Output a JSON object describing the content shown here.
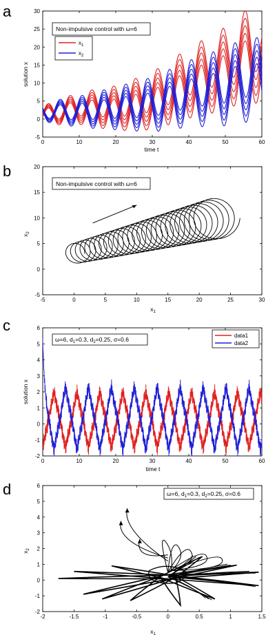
{
  "panels": [
    {
      "id": "a",
      "label": "a",
      "xlabel": "time t",
      "ylabel": "solution x",
      "xlim": [
        0,
        60
      ],
      "ylim": [
        -5,
        30
      ],
      "xticks": [
        "0",
        "10",
        "20",
        "30",
        "40",
        "50",
        "60"
      ],
      "yticks": [
        "-5",
        "0",
        "5",
        "10",
        "15",
        "20",
        "25",
        "30"
      ],
      "annotation": "Non-impulsive control with ω=6",
      "legend": [
        {
          "label": "x",
          "sub": "1",
          "color": "#e02020"
        },
        {
          "label": "x",
          "sub": "2",
          "color": "#1f1fd6"
        }
      ]
    },
    {
      "id": "b",
      "label": "b",
      "xlabel": "x",
      "xlabel_sub": "1",
      "ylabel": "x",
      "ylabel_sub": "2",
      "xlim": [
        -5,
        30
      ],
      "ylim": [
        -5,
        20
      ],
      "xticks": [
        "-5",
        "0",
        "5",
        "10",
        "15",
        "20",
        "25",
        "30"
      ],
      "yticks": [
        "-5",
        "0",
        "5",
        "10",
        "15",
        "20"
      ],
      "annotation": "Non-impulsive control with ω=6"
    },
    {
      "id": "c",
      "label": "c",
      "xlabel": "time t",
      "ylabel": "solution x",
      "xlim": [
        0,
        60
      ],
      "ylim": [
        -2,
        6
      ],
      "xticks": [
        "0",
        "10",
        "20",
        "30",
        "40",
        "50",
        "60"
      ],
      "yticks": [
        "-2",
        "-1",
        "0",
        "1",
        "2",
        "3",
        "4",
        "5",
        "6"
      ],
      "annotation_parts": [
        "ω=6,  d",
        "1",
        "=0.3,  d",
        "2",
        "=0.25,  σ=0.6"
      ],
      "legend": [
        {
          "label": "data1",
          "color": "#e02020"
        },
        {
          "label": "data2",
          "color": "#1f1fd6"
        }
      ]
    },
    {
      "id": "d",
      "label": "d",
      "xlabel": "x",
      "xlabel_sub": "1",
      "ylabel": "x",
      "ylabel_sub": "2",
      "xlim": [
        -2,
        1.5
      ],
      "ylim": [
        -2,
        6
      ],
      "xticks": [
        "-2",
        "-1.5",
        "-1",
        "-0.5",
        "0",
        "0.5",
        "1",
        "1.5"
      ],
      "yticks": [
        "-2",
        "-1",
        "0",
        "1",
        "2",
        "3",
        "4",
        "5",
        "6"
      ],
      "annotation_parts": [
        "ω=6,  d",
        "1",
        "=0.3, d",
        "2",
        "=0.25, σ=0.6"
      ]
    }
  ],
  "chart_data": [
    {
      "type": "line",
      "xlabel": "time t",
      "ylabel": "solution x",
      "xlim": [
        0,
        60
      ],
      "ylim": [
        -5,
        30
      ],
      "series": [
        {
          "name": "x1",
          "color": "#e02020",
          "description_values": {
            "t": [
              0,
              10,
              20,
              30,
              40,
              50,
              56,
              60
            ],
            "center": [
              1,
              3,
              3,
              5,
              10,
              14,
              18,
              17
            ],
            "spread_end": 5
          }
        },
        {
          "name": "x2",
          "color": "#1f1fd6",
          "description_values": {
            "t": [
              0,
              10,
              20,
              30,
              40,
              50,
              56,
              60
            ],
            "center": [
              2,
              2,
              3,
              4,
              7,
              9,
              11,
              10
            ],
            "spread_end": 4
          }
        }
      ],
      "oscillation_frequency": 6,
      "grid": false,
      "legend": "top-left"
    },
    {
      "type": "line",
      "xlim": [
        -5,
        30
      ],
      "ylim": [
        -5,
        20
      ],
      "trajectory": {
        "start": [
          0,
          3
        ],
        "end": [
          23,
          10
        ],
        "loop_radius_start": 1.7,
        "loop_radius_end": 3.5,
        "loops": 28
      }
    },
    {
      "type": "line",
      "xlabel": "time t",
      "ylabel": "solution x",
      "xlim": [
        0,
        60
      ],
      "ylim": [
        -2,
        6
      ],
      "series": [
        {
          "name": "data1",
          "color": "#e02020",
          "range": [
            -1.5,
            2.0
          ]
        },
        {
          "name": "data2",
          "color": "#1f1fd6",
          "range": [
            -1.6,
            2.3
          ],
          "initial_peak": 5.3
        }
      ],
      "period": 6.28,
      "legend": "top-right"
    },
    {
      "type": "line",
      "xlim": [
        -2,
        1.5
      ],
      "ylim": [
        -2,
        6
      ],
      "petals": [
        {
          "angle_deg": 180,
          "tip": [
            -1.75,
            0.1
          ]
        },
        {
          "angle_deg": 200,
          "tip": [
            -1.35,
            -0.9
          ]
        },
        {
          "angle_deg": 225,
          "tip": [
            -1.05,
            -1.2
          ]
        },
        {
          "angle_deg": 250,
          "tip": [
            -0.6,
            -1.3
          ]
        },
        {
          "angle_deg": 280,
          "tip": [
            0.2,
            -1.6
          ]
        },
        {
          "angle_deg": 305,
          "tip": [
            0.75,
            -1.2
          ]
        },
        {
          "angle_deg": 330,
          "tip": [
            1.45,
            -0.35
          ]
        },
        {
          "angle_deg": 355,
          "tip": [
            1.45,
            0.5
          ]
        },
        {
          "angle_deg": 15,
          "tip": [
            1.1,
            0.95
          ]
        },
        {
          "angle_deg": 40,
          "tip": [
            0.55,
            1.5
          ]
        },
        {
          "angle_deg": 140,
          "tip": [
            -0.9,
            0.9
          ]
        },
        {
          "angle_deg": 160,
          "tip": [
            -1.5,
            0.55
          ]
        }
      ],
      "arrows": [
        [
          -0.65,
          4.55
        ],
        [
          -0.75,
          3.75
        ],
        [
          -0.45,
          2.6
        ]
      ]
    }
  ]
}
